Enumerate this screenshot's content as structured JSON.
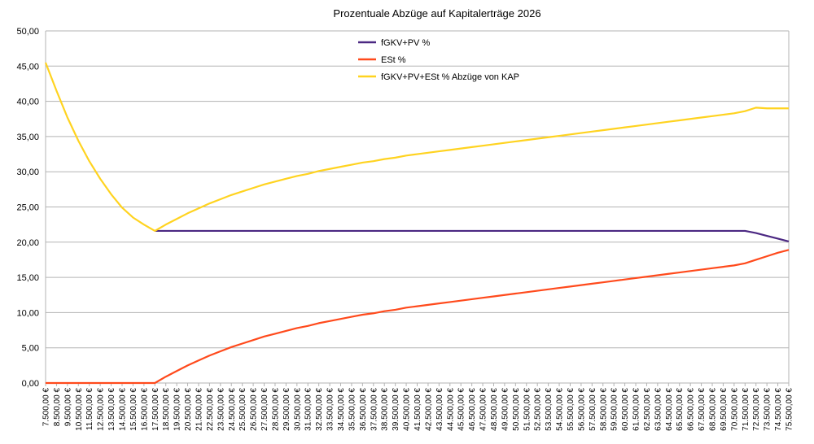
{
  "chart_data": {
    "type": "line",
    "title": "Prozentuale Abzüge auf Kapitalerträge 2026",
    "xlabel": "",
    "ylabel": "",
    "ylim": [
      0,
      50
    ],
    "yticks": [
      "0,00",
      "5,00",
      "10,00",
      "15,00",
      "20,00",
      "25,00",
      "30,00",
      "35,00",
      "40,00",
      "45,00",
      "50,00"
    ],
    "ytick_values": [
      0,
      5,
      10,
      15,
      20,
      25,
      30,
      35,
      40,
      45,
      50
    ],
    "grid": true,
    "legend_position": "top-center",
    "categories": [
      "7.500,00 €",
      "8.500,00 €",
      "9.500,00 €",
      "10.500,00 €",
      "11.500,00 €",
      "12.500,00 €",
      "13.500,00 €",
      "14.500,00 €",
      "15.500,00 €",
      "16.500,00 €",
      "17.500,00 €",
      "18.500,00 €",
      "19.500,00 €",
      "20.500,00 €",
      "21.500,00 €",
      "22.500,00 €",
      "23.500,00 €",
      "24.500,00 €",
      "25.500,00 €",
      "26.500,00 €",
      "27.500,00 €",
      "28.500,00 €",
      "29.500,00 €",
      "30.500,00 €",
      "31.500,00 €",
      "32.500,00 €",
      "33.500,00 €",
      "34.500,00 €",
      "35.500,00 €",
      "36.500,00 €",
      "37.500,00 €",
      "38.500,00 €",
      "39.500,00 €",
      "40.500,00 €",
      "41.500,00 €",
      "42.500,00 €",
      "43.500,00 €",
      "44.500,00 €",
      "45.500,00 €",
      "46.500,00 €",
      "47.500,00 €",
      "48.500,00 €",
      "49.500,00 €",
      "50.500,00 €",
      "51.500,00 €",
      "52.500,00 €",
      "53.500,00 €",
      "54.500,00 €",
      "55.500,00 €",
      "56.500,00 €",
      "57.500,00 €",
      "58.500,00 €",
      "59.500,00 €",
      "60.500,00 €",
      "61.500,00 €",
      "62.500,00 €",
      "63.500,00 €",
      "64.500,00 €",
      "65.500,00 €",
      "66.500,00 €",
      "67.500,00 €",
      "68.500,00 €",
      "69.500,00 €",
      "70.500,00 €",
      "71.500,00 €",
      "72.500,00 €",
      "73.500,00 €",
      "74.500,00 €",
      "75.500,00 €"
    ],
    "series": [
      {
        "name": "fGKV+PV %",
        "color": "#4b2882",
        "values": [
          null,
          null,
          null,
          null,
          null,
          null,
          null,
          null,
          null,
          null,
          21.6,
          21.6,
          21.6,
          21.6,
          21.6,
          21.6,
          21.6,
          21.6,
          21.6,
          21.6,
          21.6,
          21.6,
          21.6,
          21.6,
          21.6,
          21.6,
          21.6,
          21.6,
          21.6,
          21.6,
          21.6,
          21.6,
          21.6,
          21.6,
          21.6,
          21.6,
          21.6,
          21.6,
          21.6,
          21.6,
          21.6,
          21.6,
          21.6,
          21.6,
          21.6,
          21.6,
          21.6,
          21.6,
          21.6,
          21.6,
          21.6,
          21.6,
          21.6,
          21.6,
          21.6,
          21.6,
          21.6,
          21.6,
          21.6,
          21.6,
          21.6,
          21.6,
          21.6,
          21.6,
          21.6,
          21.3,
          20.9,
          20.5,
          20.1
        ]
      },
      {
        "name": "ESt %",
        "color": "#ff4a1c",
        "values": [
          0,
          0,
          0,
          0,
          0,
          0,
          0,
          0,
          0,
          0,
          0,
          0.9,
          1.7,
          2.5,
          3.2,
          3.9,
          4.5,
          5.1,
          5.6,
          6.1,
          6.6,
          7.0,
          7.4,
          7.8,
          8.1,
          8.5,
          8.8,
          9.1,
          9.4,
          9.7,
          9.9,
          10.2,
          10.4,
          10.7,
          10.9,
          11.1,
          11.3,
          11.5,
          11.7,
          11.9,
          12.1,
          12.3,
          12.5,
          12.7,
          12.9,
          13.1,
          13.3,
          13.5,
          13.7,
          13.9,
          14.1,
          14.3,
          14.5,
          14.7,
          14.9,
          15.1,
          15.3,
          15.5,
          15.7,
          15.9,
          16.1,
          16.3,
          16.5,
          16.7,
          17.0,
          17.5,
          18.0,
          18.5,
          18.9
        ]
      },
      {
        "name": "fGKV+PV+ESt % Abzüge von KAP",
        "color": "#ffd320",
        "values": [
          45.5,
          41.5,
          37.7,
          34.4,
          31.5,
          29.0,
          26.8,
          24.9,
          23.5,
          22.5,
          21.6,
          22.5,
          23.3,
          24.1,
          24.8,
          25.5,
          26.1,
          26.7,
          27.2,
          27.7,
          28.2,
          28.6,
          29.0,
          29.4,
          29.7,
          30.1,
          30.4,
          30.7,
          31.0,
          31.3,
          31.5,
          31.8,
          32.0,
          32.3,
          32.5,
          32.7,
          32.9,
          33.1,
          33.3,
          33.5,
          33.7,
          33.9,
          34.1,
          34.3,
          34.5,
          34.7,
          34.9,
          35.1,
          35.3,
          35.5,
          35.7,
          35.9,
          36.1,
          36.3,
          36.5,
          36.7,
          36.9,
          37.1,
          37.3,
          37.5,
          37.7,
          37.9,
          38.1,
          38.3,
          38.6,
          39.1,
          39.0,
          39.0,
          39.0
        ]
      }
    ]
  }
}
